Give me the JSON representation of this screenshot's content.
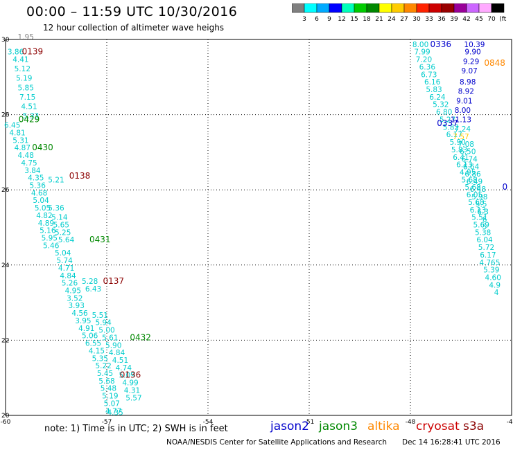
{
  "header": {
    "title": "00:00 – 11:59 UTC 10/30/2016",
    "subtitle": "12 hour collection of altimeter wave heighs"
  },
  "colorbar": {
    "labels": [
      "3",
      "6",
      "9",
      "12",
      "15",
      "18",
      "21",
      "24",
      "27",
      "30",
      "33",
      "36",
      "39",
      "42",
      "45",
      "70",
      "(ft)"
    ],
    "colors": [
      "#808080",
      "#00ffff",
      "#00aaff",
      "#0000ff",
      "#00ffbb",
      "#00cc00",
      "#008800",
      "#ffff00",
      "#ffcc00",
      "#ff8800",
      "#ff2200",
      "#cc0000",
      "#990000",
      "#990099",
      "#cc66ff",
      "#ffaaff",
      "#000000"
    ]
  },
  "footer": {
    "note": "note:  1) Time is in UTC;  2) SWH is in feet",
    "credit": "NOAA/NESDIS Center for Satellite Applications and Research",
    "timestamp": "Dec 14 16:28:41 UTC 2016",
    "legend": [
      {
        "name": "jason2",
        "color": "#0000cc",
        "left": 390
      },
      {
        "name": "jason3",
        "color": "#008800",
        "left": 460
      },
      {
        "name": "altika",
        "color": "#ff8800",
        "left": 530
      },
      {
        "name": "cryosat",
        "color": "#cc0000",
        "left": 600
      },
      {
        "name": "s3a",
        "color": "#8b0000",
        "left": 668
      }
    ]
  },
  "chart_data": {
    "type": "scatter",
    "title": "00:00 – 11:59 UTC 10/30/2016",
    "subtitle": "12 hour collection of altimeter wave heighs",
    "xlabel": "",
    "ylabel": "",
    "xlim": [
      -60,
      -45
    ],
    "ylim": [
      20,
      30
    ],
    "x_ticks": [
      "-60",
      "-57",
      "-54",
      "-51",
      "-48",
      "-45"
    ],
    "y_ticks": [
      "20",
      "22",
      "24",
      "26",
      "28",
      "30"
    ],
    "grid": true,
    "units": "ft",
    "series": [
      {
        "name": "jason2",
        "color": "#0000cc",
        "points": [
          {
            "x": -47.1,
            "y": 29.8,
            "label": "0336"
          },
          {
            "x": -46.9,
            "y": 27.7,
            "label": "0337"
          },
          {
            "x": -45.2,
            "y": 26.0,
            "label": "0"
          },
          {
            "x": -46.1,
            "y": 29.8,
            "label": "10.39"
          },
          {
            "x": -46.15,
            "y": 29.6,
            "label": "9.90"
          },
          {
            "x": -46.2,
            "y": 29.35,
            "label": "9.29"
          },
          {
            "x": -46.25,
            "y": 29.1,
            "label": "9.07"
          },
          {
            "x": -46.3,
            "y": 28.8,
            "label": "8.98"
          },
          {
            "x": -46.35,
            "y": 28.55,
            "label": "8.92"
          },
          {
            "x": -46.4,
            "y": 28.3,
            "label": "9.01"
          },
          {
            "x": -46.45,
            "y": 28.05,
            "label": "8.00"
          },
          {
            "x": -46.5,
            "y": 27.8,
            "label": "11.13"
          }
        ]
      },
      {
        "name": "jason3",
        "color": "#008800",
        "points": [
          {
            "x": -59.3,
            "y": 27.8,
            "label": "0429"
          },
          {
            "x": -58.9,
            "y": 27.05,
            "label": "0430"
          },
          {
            "x": -57.2,
            "y": 24.6,
            "label": "0431"
          },
          {
            "x": -56.0,
            "y": 22.0,
            "label": "0432"
          }
        ]
      },
      {
        "name": "altika",
        "color": "#ff8800",
        "points": [
          {
            "x": -45.5,
            "y": 29.3,
            "label": "0848"
          }
        ]
      },
      {
        "name": "cryosat",
        "color": "#cc0000",
        "points": [],
        "labels": []
      },
      {
        "name": "s3a",
        "color": "#8b0000",
        "points": [
          {
            "x": -59.2,
            "y": 29.6,
            "label": "0139"
          },
          {
            "x": -57.8,
            "y": 26.3,
            "label": "0138"
          },
          {
            "x": -56.8,
            "y": 23.5,
            "label": "0137"
          },
          {
            "x": -56.3,
            "y": 21.0,
            "label": "0136"
          }
        ]
      }
    ],
    "swh_values": {
      "color_hint": "#00cccc",
      "track_west": [
        {
          "x": -59.4,
          "y": 30.0,
          "v": "1.95"
        },
        {
          "x": -59.7,
          "y": 29.6,
          "v": "3.86"
        },
        {
          "x": -59.55,
          "y": 29.4,
          "v": "4.41"
        },
        {
          "x": -59.5,
          "y": 29.15,
          "v": "5.12"
        },
        {
          "x": -59.45,
          "y": 28.9,
          "v": "5.19"
        },
        {
          "x": -59.4,
          "y": 28.65,
          "v": "5.85"
        },
        {
          "x": -59.35,
          "y": 28.4,
          "v": "7.15"
        },
        {
          "x": -59.3,
          "y": 28.15,
          "v": "4.51"
        },
        {
          "x": -59.25,
          "y": 27.9,
          "v": "5.33"
        },
        {
          "x": -59.8,
          "y": 27.65,
          "v": "6.45"
        },
        {
          "x": -59.65,
          "y": 27.45,
          "v": "4.81"
        },
        {
          "x": -59.55,
          "y": 27.25,
          "v": "5.31"
        },
        {
          "x": -59.5,
          "y": 27.05,
          "v": "4.87"
        },
        {
          "x": -59.4,
          "y": 26.85,
          "v": "4.48"
        },
        {
          "x": -59.3,
          "y": 26.65,
          "v": "4.75"
        },
        {
          "x": -59.2,
          "y": 26.45,
          "v": "3.84"
        },
        {
          "x": -59.1,
          "y": 26.25,
          "v": "4.35"
        },
        {
          "x": -59.05,
          "y": 26.05,
          "v": "5.36"
        },
        {
          "x": -59.0,
          "y": 25.85,
          "v": "4.68"
        },
        {
          "x": -58.95,
          "y": 25.65,
          "v": "5.04"
        },
        {
          "x": -58.9,
          "y": 25.45,
          "v": "5.05"
        },
        {
          "x": -58.85,
          "y": 25.25,
          "v": "4.82"
        },
        {
          "x": -58.8,
          "y": 25.05,
          "v": "4.89"
        },
        {
          "x": -58.75,
          "y": 24.85,
          "v": "5.16"
        },
        {
          "x": -58.7,
          "y": 24.65,
          "v": "5.95"
        },
        {
          "x": -58.65,
          "y": 24.45,
          "v": "5.46"
        },
        {
          "x": -58.3,
          "y": 24.25,
          "v": "5.04"
        },
        {
          "x": -58.25,
          "y": 24.05,
          "v": "5.74"
        },
        {
          "x": -58.2,
          "y": 23.85,
          "v": "4.71"
        },
        {
          "x": -58.15,
          "y": 23.65,
          "v": "4.84"
        },
        {
          "x": -58.1,
          "y": 23.45,
          "v": "5.26"
        },
        {
          "x": -58.0,
          "y": 23.25,
          "v": "4.95"
        },
        {
          "x": -57.95,
          "y": 23.05,
          "v": "3.52"
        },
        {
          "x": -57.9,
          "y": 22.85,
          "v": "3.93"
        },
        {
          "x": -57.8,
          "y": 22.65,
          "v": "4.56"
        },
        {
          "x": -57.7,
          "y": 22.45,
          "v": "3.95"
        },
        {
          "x": -57.6,
          "y": 22.25,
          "v": "4.91"
        },
        {
          "x": -57.5,
          "y": 22.05,
          "v": "5.06"
        },
        {
          "x": -57.4,
          "y": 21.85,
          "v": "6.55"
        },
        {
          "x": -57.3,
          "y": 21.65,
          "v": "4.15"
        },
        {
          "x": -57.2,
          "y": 21.45,
          "v": "5.35"
        },
        {
          "x": -57.1,
          "y": 21.25,
          "v": "5.22"
        },
        {
          "x": -57.05,
          "y": 21.05,
          "v": "5.45"
        },
        {
          "x": -57.0,
          "y": 20.85,
          "v": "5.68"
        },
        {
          "x": -56.95,
          "y": 20.65,
          "v": "5.48"
        },
        {
          "x": -56.9,
          "y": 20.45,
          "v": "5.19"
        },
        {
          "x": -56.85,
          "y": 20.25,
          "v": "5.07"
        },
        {
          "x": -56.8,
          "y": 20.05,
          "v": "4.77"
        },
        {
          "x": -56.75,
          "y": 20.01,
          "v": "4.35"
        }
      ],
      "track_west2": [
        {
          "x": -58.5,
          "y": 26.2,
          "v": "5.21"
        },
        {
          "x": -58.5,
          "y": 25.45,
          "v": "5.36"
        },
        {
          "x": -58.4,
          "y": 25.2,
          "v": "5.14"
        },
        {
          "x": -58.35,
          "y": 25.0,
          "v": "5.65"
        },
        {
          "x": -58.3,
          "y": 24.8,
          "v": "5.25"
        },
        {
          "x": -58.2,
          "y": 24.6,
          "v": "5.64"
        },
        {
          "x": -57.5,
          "y": 23.5,
          "v": "5.28"
        },
        {
          "x": -57.4,
          "y": 23.3,
          "v": "6.43"
        },
        {
          "x": -57.2,
          "y": 22.6,
          "v": "5.51"
        },
        {
          "x": -57.1,
          "y": 22.4,
          "v": "5.94"
        },
        {
          "x": -57.0,
          "y": 22.2,
          "v": "5.00"
        },
        {
          "x": -56.9,
          "y": 22.0,
          "v": "5.61"
        },
        {
          "x": -56.8,
          "y": 21.8,
          "v": "5.90"
        },
        {
          "x": -56.7,
          "y": 21.6,
          "v": "4.84"
        },
        {
          "x": -56.6,
          "y": 21.4,
          "v": "4.51"
        },
        {
          "x": -56.5,
          "y": 21.2,
          "v": "4.74"
        },
        {
          "x": -56.4,
          "y": 21.0,
          "v": "5.09"
        },
        {
          "x": -56.3,
          "y": 20.8,
          "v": "4.99"
        },
        {
          "x": -56.25,
          "y": 20.6,
          "v": "4.31"
        },
        {
          "x": -56.2,
          "y": 20.4,
          "v": "5.57"
        }
      ],
      "track_east": [
        {
          "x": -47.7,
          "y": 29.8,
          "v": "8.00"
        },
        {
          "x": -47.65,
          "y": 29.6,
          "v": "7.99"
        },
        {
          "x": -47.6,
          "y": 29.4,
          "v": "7.20"
        },
        {
          "x": -47.5,
          "y": 29.2,
          "v": "6.36"
        },
        {
          "x": -47.45,
          "y": 29.0,
          "v": "6.73"
        },
        {
          "x": -47.35,
          "y": 28.8,
          "v": "6.16"
        },
        {
          "x": -47.3,
          "y": 28.6,
          "v": "5.83"
        },
        {
          "x": -47.2,
          "y": 28.4,
          "v": "6.24"
        },
        {
          "x": -47.1,
          "y": 28.2,
          "v": "5.32"
        },
        {
          "x": -47.0,
          "y": 28.0,
          "v": "6.80"
        },
        {
          "x": -46.9,
          "y": 27.8,
          "v": "5.27"
        },
        {
          "x": -46.8,
          "y": 27.6,
          "v": "5.82"
        },
        {
          "x": -46.7,
          "y": 27.4,
          "v": "6.17"
        },
        {
          "x": -46.6,
          "y": 27.2,
          "v": "5.90"
        },
        {
          "x": -46.55,
          "y": 27.0,
          "v": "5.83"
        },
        {
          "x": -46.5,
          "y": 26.8,
          "v": "6.41"
        },
        {
          "x": -46.4,
          "y": 26.6,
          "v": "6.13"
        },
        {
          "x": -46.3,
          "y": 26.4,
          "v": "4.95"
        },
        {
          "x": -46.25,
          "y": 26.2,
          "v": "5.68"
        },
        {
          "x": -46.15,
          "y": 26.0,
          "v": "5.68"
        },
        {
          "x": -46.1,
          "y": 25.8,
          "v": "6.05"
        },
        {
          "x": -46.05,
          "y": 25.6,
          "v": "5.68"
        },
        {
          "x": -46.0,
          "y": 25.4,
          "v": "6.13"
        },
        {
          "x": -45.95,
          "y": 25.2,
          "v": "5.51"
        },
        {
          "x": -45.9,
          "y": 25.0,
          "v": "5.69"
        },
        {
          "x": -45.85,
          "y": 24.8,
          "v": "5.38"
        },
        {
          "x": -45.8,
          "y": 24.6,
          "v": "6.04"
        },
        {
          "x": -45.75,
          "y": 24.4,
          "v": "5.72"
        },
        {
          "x": -45.7,
          "y": 24.2,
          "v": "6.17"
        },
        {
          "x": -45.65,
          "y": 24.0,
          "v": "4.765"
        },
        {
          "x": -45.6,
          "y": 23.8,
          "v": "5.39"
        },
        {
          "x": -45.55,
          "y": 23.6,
          "v": "4.60"
        },
        {
          "x": -45.5,
          "y": 23.4,
          "v": "4.9"
        },
        {
          "x": -45.45,
          "y": 23.2,
          "v": "4"
        }
      ],
      "track_east2": [
        {
          "x": -46.45,
          "y": 27.55,
          "v": "7.24"
        },
        {
          "x": -46.5,
          "y": 27.35,
          "v": "7.57"
        },
        {
          "x": -46.35,
          "y": 27.15,
          "v": "7.08"
        },
        {
          "x": -46.3,
          "y": 26.95,
          "v": "6.50"
        },
        {
          "x": -46.25,
          "y": 26.75,
          "v": "6.74"
        },
        {
          "x": -46.2,
          "y": 26.55,
          "v": "6.64"
        },
        {
          "x": -46.15,
          "y": 26.35,
          "v": "6.86"
        },
        {
          "x": -46.1,
          "y": 26.15,
          "v": "6.49"
        },
        {
          "x": -46.0,
          "y": 25.95,
          "v": "6.48"
        },
        {
          "x": -45.95,
          "y": 25.75,
          "v": "5.98"
        },
        {
          "x": -45.9,
          "y": 25.55,
          "v": "5.5"
        },
        {
          "x": -45.85,
          "y": 25.35,
          "v": "6.3"
        },
        {
          "x": -45.8,
          "y": 25.15,
          "v": "6"
        },
        {
          "x": -45.8,
          "y": 24.95,
          "v": "5"
        }
      ]
    }
  }
}
